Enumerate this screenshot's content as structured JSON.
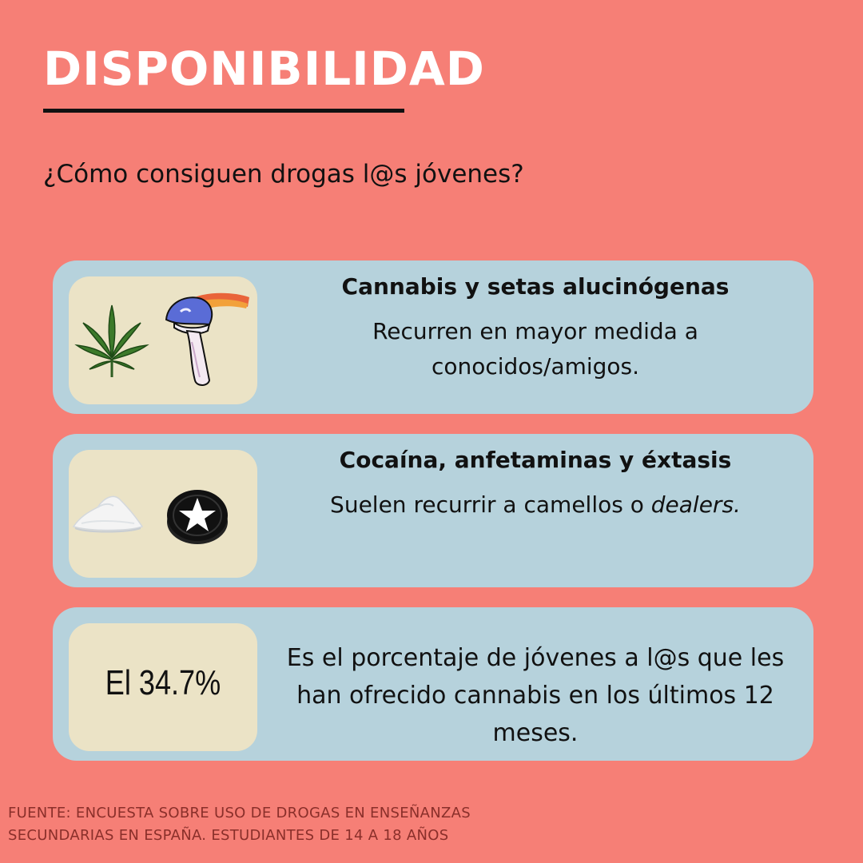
{
  "header": {
    "title": "DISPONIBILIDAD",
    "question": "¿Cómo consiguen drogas l@s jóvenes?"
  },
  "cards": [
    {
      "heading": "Cannabis y setas alucinógenas",
      "text": "Recurren en mayor medida a conocidos/amigos.",
      "icons": [
        "cannabis-leaf-icon",
        "mushroom-icon"
      ]
    },
    {
      "heading": "Cocaína, anfetaminas y éxtasis",
      "text_prefix": "Suelen recurrir a camellos o ",
      "text_emphasis": "dealers.",
      "icons": [
        "powder-pile-icon",
        "star-pill-icon"
      ]
    }
  ],
  "stat": {
    "value": "El 34.7%",
    "text": "Es el porcentaje de jóvenes a l@s que les han ofrecido cannabis en los últimos 12 meses."
  },
  "footer": {
    "line1": "FUENTE: ENCUESTA SOBRE USO DE DROGAS EN ENSEÑANZAS",
    "line2": "SECUNDARIAS EN ESPAÑA. ESTUDIANTES DE 14 A 18 AÑOS"
  },
  "colors": {
    "background": "#f67f76",
    "card": "#b6d2dc",
    "icon_box": "#ebe3c6",
    "title": "#ffffff"
  }
}
